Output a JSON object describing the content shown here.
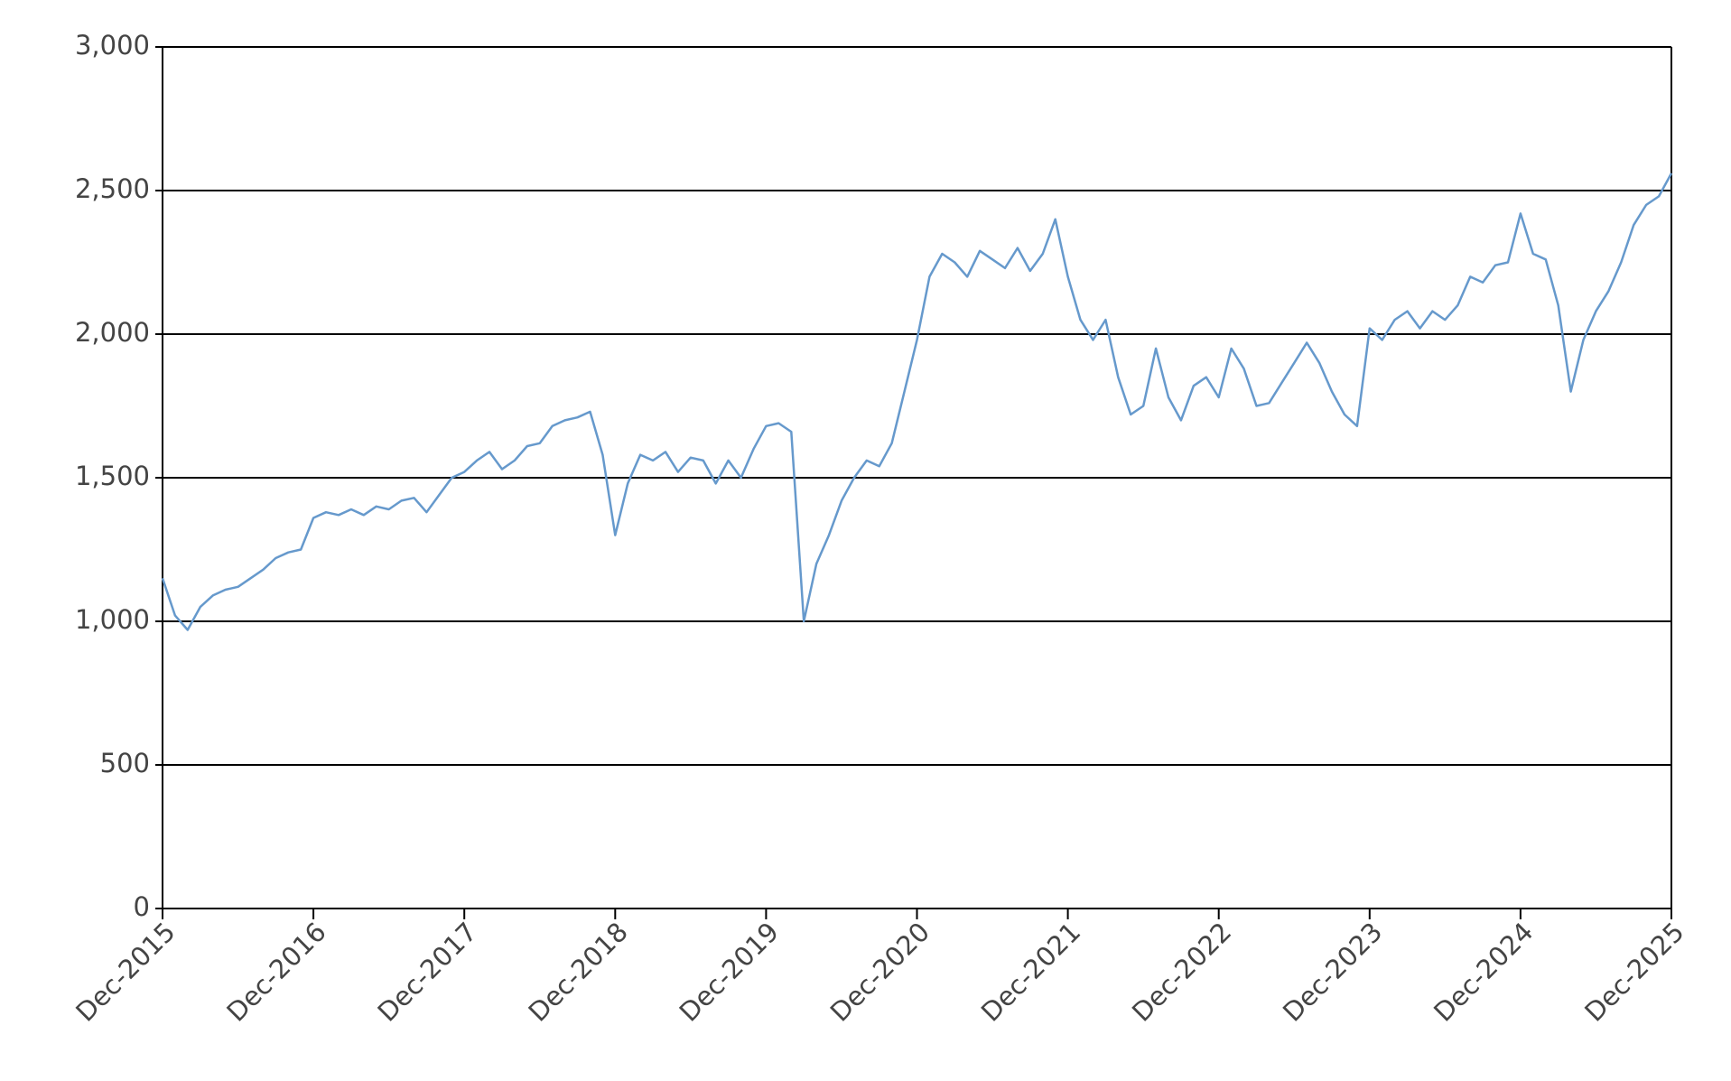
{
  "chart_data": {
    "type": "line",
    "categories": [
      "Dec-2015",
      null,
      null,
      null,
      null,
      null,
      null,
      null,
      null,
      null,
      null,
      null,
      "Dec-2016",
      null,
      null,
      null,
      null,
      null,
      null,
      null,
      null,
      null,
      null,
      null,
      "Dec-2017",
      null,
      null,
      null,
      null,
      null,
      null,
      null,
      null,
      null,
      null,
      null,
      "Dec-2018",
      null,
      null,
      null,
      null,
      null,
      null,
      null,
      null,
      null,
      null,
      null,
      "Dec-2019",
      null,
      null,
      null,
      null,
      null,
      null,
      null,
      null,
      null,
      null,
      null,
      "Dec-2020",
      null,
      null,
      null,
      null,
      null,
      null,
      null,
      null,
      null,
      null,
      null,
      "Dec-2021",
      null,
      null,
      null,
      null,
      null,
      null,
      null,
      null,
      null,
      null,
      null,
      "Dec-2022",
      null,
      null,
      null,
      null,
      null,
      null,
      null,
      null,
      null,
      null,
      null,
      "Dec-2023",
      null,
      null,
      null,
      null,
      null,
      null,
      null,
      null,
      null,
      null,
      null,
      "Dec-2024",
      null,
      null,
      null,
      null,
      null,
      null,
      null,
      null,
      null,
      null,
      null,
      "Dec-2025"
    ],
    "values": [
      1150,
      1020,
      970,
      1050,
      1090,
      1110,
      1120,
      1150,
      1180,
      1220,
      1240,
      1250,
      1360,
      1380,
      1370,
      1390,
      1370,
      1400,
      1390,
      1420,
      1430,
      1380,
      1440,
      1500,
      1520,
      1560,
      1590,
      1530,
      1560,
      1610,
      1620,
      1680,
      1700,
      1710,
      1730,
      1580,
      1300,
      1480,
      1580,
      1560,
      1590,
      1520,
      1570,
      1560,
      1480,
      1560,
      1500,
      1600,
      1680,
      1690,
      1660,
      1000,
      1200,
      1300,
      1420,
      1500,
      1560,
      1540,
      1620,
      1800,
      1980,
      2200,
      2280,
      2250,
      2200,
      2290,
      2260,
      2230,
      2300,
      2220,
      2280,
      2400,
      2200,
      2050,
      1980,
      2050,
      1850,
      1720,
      1750,
      1950,
      1780,
      1700,
      1820,
      1850,
      1780,
      1950,
      1880,
      1750,
      1760,
      1830,
      1900,
      1970,
      1900,
      1800,
      1720,
      1680,
      2020,
      1980,
      2050,
      2080,
      2020,
      2080,
      2050,
      2100,
      2200,
      2180,
      2240,
      2250,
      2420,
      2280,
      2260,
      2100,
      1800,
      1980,
      2080,
      2150,
      2250,
      2380,
      2450,
      2480,
      2560
    ],
    "color": "#6699cc",
    "ylim": [
      0,
      3000
    ],
    "yticks": [
      0,
      500,
      {
        "value": 1000,
        "label": "1,000"
      },
      {
        "value": 1500,
        "label": "1,500"
      },
      {
        "value": 2000,
        "label": "2,000"
      },
      {
        "value": 2500,
        "label": "2,500"
      },
      {
        "value": 3000,
        "label": "3,000"
      }
    ],
    "grid": true
  }
}
